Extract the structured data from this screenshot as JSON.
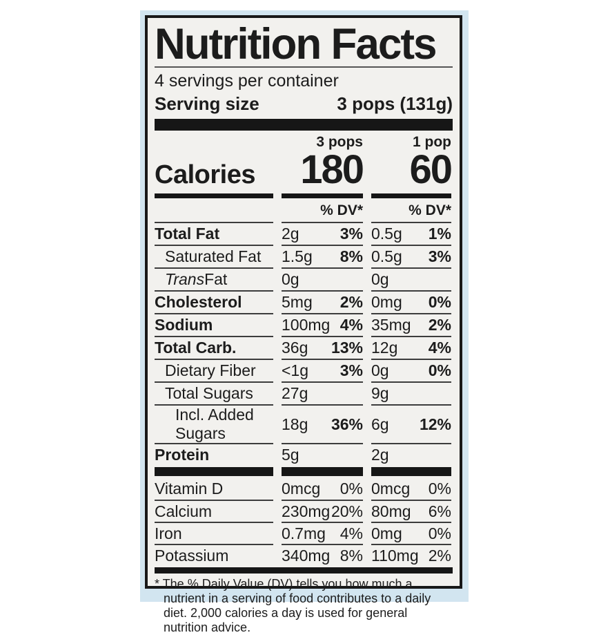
{
  "colors": {
    "page_background": "#ffffff",
    "package_blue": "#d2e5f0",
    "label_background": "#f2f1ee",
    "ink": "#1c1c1c"
  },
  "label": {
    "title": "Nutrition Facts",
    "servings_per_container": "4 servings per container",
    "serving_size_label": "Serving size",
    "serving_size_value": "3 pops (131g)",
    "col1_header": "3 pops",
    "col2_header": "1 pop",
    "calories_label": "Calories",
    "calories_col1": "180",
    "calories_col2": "60",
    "dv_header": "% DV*",
    "footnote": "* The % Daily Value (DV) tells you how much a nutrient in a serving of food contributes to a daily diet. 2,000 calories a day is used for general nutrition advice."
  },
  "nutrients": [
    {
      "name": "Total Fat",
      "c1_amt": "2g",
      "c1_dv": "3%",
      "c2_amt": "0.5g",
      "c2_dv": "1%"
    },
    {
      "name": "Saturated Fat",
      "c1_amt": "1.5g",
      "c1_dv": "8%",
      "c2_amt": "0.5g",
      "c2_dv": "3%"
    },
    {
      "name_italic": "Trans",
      "name_rest": " Fat",
      "c1_amt": "0g",
      "c1_dv": "",
      "c2_amt": "0g",
      "c2_dv": ""
    },
    {
      "name": "Cholesterol",
      "c1_amt": "5mg",
      "c1_dv": "2%",
      "c2_amt": "0mg",
      "c2_dv": "0%"
    },
    {
      "name": "Sodium",
      "c1_amt": "100mg",
      "c1_dv": "4%",
      "c2_amt": "35mg",
      "c2_dv": "2%"
    },
    {
      "name": "Total Carb.",
      "c1_amt": "36g",
      "c1_dv": "13%",
      "c2_amt": "12g",
      "c2_dv": "4%"
    },
    {
      "name": "Dietary Fiber",
      "c1_amt": "<1g",
      "c1_dv": "3%",
      "c2_amt": "0g",
      "c2_dv": "0%"
    },
    {
      "name": "Total Sugars",
      "c1_amt": "27g",
      "c1_dv": "",
      "c2_amt": "9g",
      "c2_dv": ""
    },
    {
      "name": "Incl. Added Sugars",
      "c1_amt": "18g",
      "c1_dv": "36%",
      "c2_amt": "6g",
      "c2_dv": "12%"
    },
    {
      "name": "Protein",
      "c1_amt": "5g",
      "c1_dv": "",
      "c2_amt": "2g",
      "c2_dv": ""
    }
  ],
  "vitamins": [
    {
      "name": "Vitamin D",
      "c1_amt": "0mcg",
      "c1_dv": "0%",
      "c2_amt": "0mcg",
      "c2_dv": "0%"
    },
    {
      "name": "Calcium",
      "c1_amt": "230mg",
      "c1_dv": "20%",
      "c2_amt": "80mg",
      "c2_dv": "6%"
    },
    {
      "name": "Iron",
      "c1_amt": "0.7mg",
      "c1_dv": "4%",
      "c2_amt": "0mg",
      "c2_dv": "0%"
    },
    {
      "name": "Potassium",
      "c1_amt": "340mg",
      "c1_dv": "8%",
      "c2_amt": "110mg",
      "c2_dv": "2%"
    }
  ]
}
